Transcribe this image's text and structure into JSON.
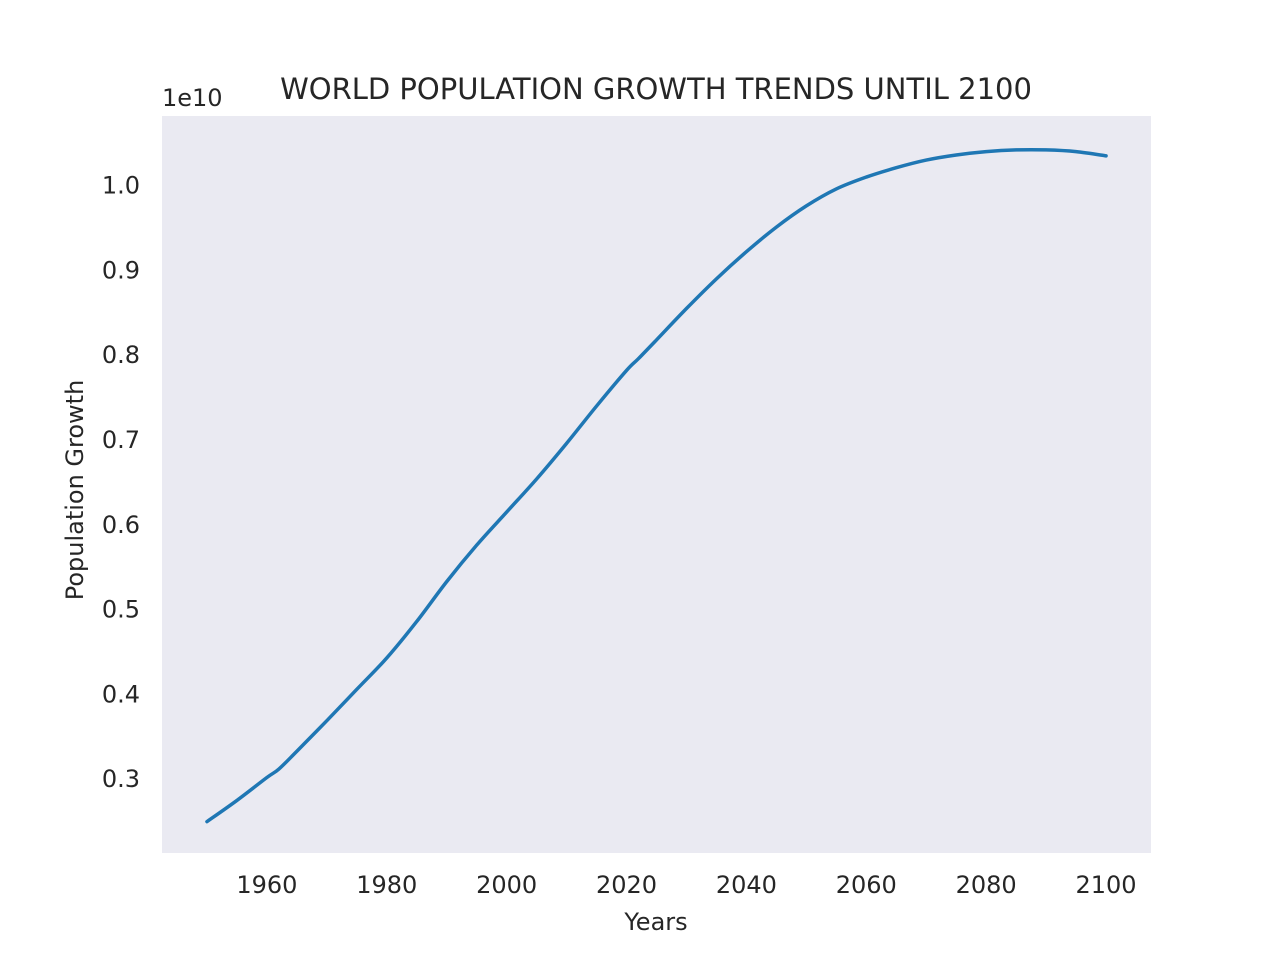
{
  "chart_data": {
    "type": "line",
    "title": "WORLD POPULATION GROWTH TRENDS UNTIL 2100",
    "xlabel": "Years",
    "ylabel": "Population Growth",
    "y_offset_label": "1e10",
    "xlim": [
      1942.5,
      2107.5
    ],
    "ylim": [
      2130000000.0,
      10820000000.0
    ],
    "x_ticks": [
      1960,
      1980,
      2000,
      2020,
      2040,
      2060,
      2080,
      2100
    ],
    "y_ticks": [
      0.3,
      0.4,
      0.5,
      0.6,
      0.7,
      0.8,
      0.9,
      1.0
    ],
    "y_tick_scale": 10000000000.0,
    "grid": false,
    "colors": {
      "background": "#eaeaf2",
      "line": "#1f77b4"
    },
    "series": [
      {
        "x": [
          1950,
          1955,
          1960,
          1962,
          1965,
          1970,
          1975,
          1980,
          1985,
          1990,
          1995,
          2000,
          2005,
          2010,
          2015,
          2020,
          2022,
          2025,
          2030,
          2035,
          2040,
          2045,
          2050,
          2055,
          2060,
          2065,
          2070,
          2075,
          2080,
          2085,
          2090,
          2095,
          2100
        ],
        "values": [
          2500000000.0,
          2750000000.0,
          3020000000.0,
          3120000000.0,
          3330000000.0,
          3690000000.0,
          4060000000.0,
          4430000000.0,
          4860000000.0,
          5330000000.0,
          5760000000.0,
          6150000000.0,
          6540000000.0,
          6960000000.0,
          7400000000.0,
          7820000000.0,
          7960000000.0,
          8180000000.0,
          8550000000.0,
          8900000000.0,
          9220000000.0,
          9510000000.0,
          9760000000.0,
          9960000000.0,
          10100000000.0,
          10210000000.0,
          10300000000.0,
          10360000000.0,
          10400000000.0,
          10420000000.0,
          10420000000.0,
          10400000000.0,
          10350000000.0
        ]
      }
    ]
  }
}
